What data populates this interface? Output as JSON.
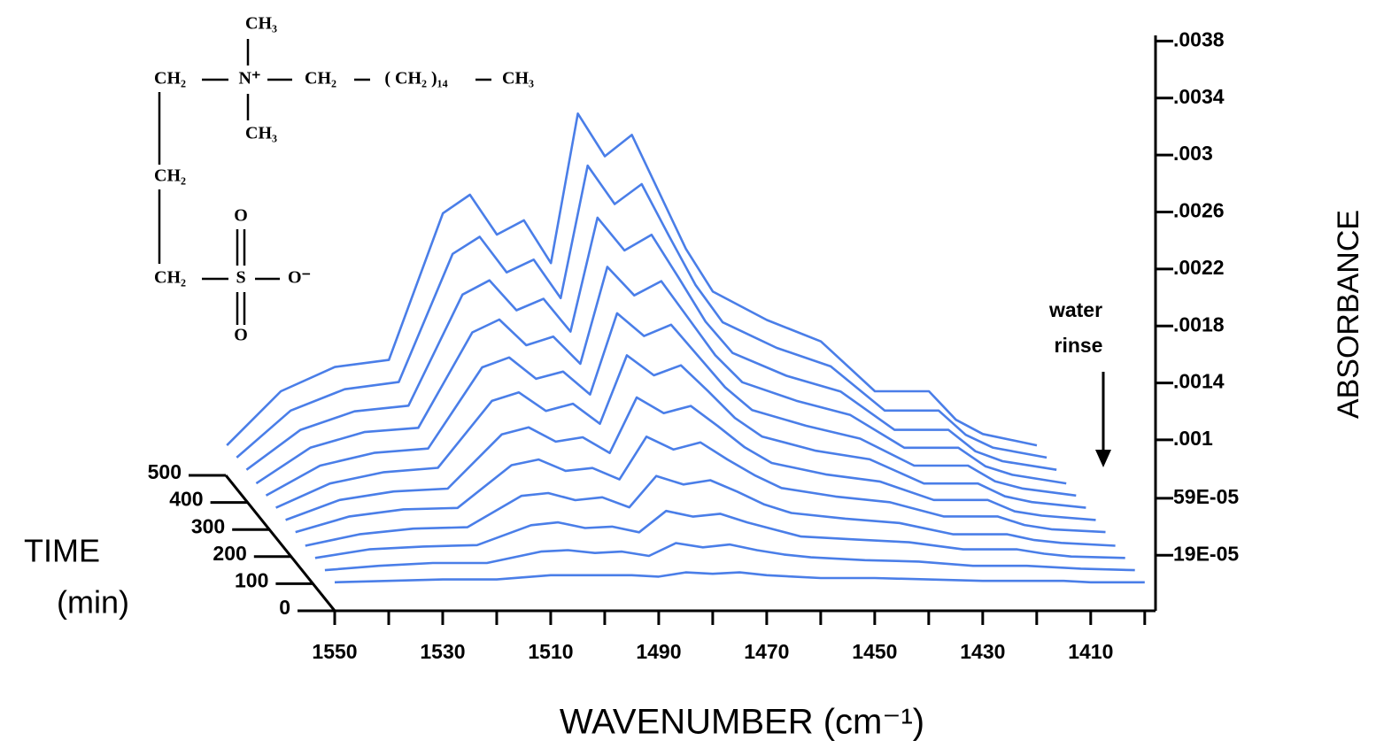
{
  "chart_data": {
    "type": "waterfall",
    "xlabel": "WAVENUMBER (cm⁻¹)",
    "ylabel": "ABSORBANCE",
    "zlabel": "TIME",
    "zunit": "(min)",
    "annotation": [
      "water",
      "rinse"
    ],
    "structure_labels": [
      "CH₃",
      "CH₂",
      "N⁺",
      "CH₂",
      "( CH₂ )₁₄",
      "CH₃",
      "CH₃",
      "CH₂",
      "CH₂",
      "S",
      "O⁻",
      "O",
      "O"
    ],
    "color": "#4a7ee8",
    "xlim": [
      1550,
      1398
    ],
    "xticks": [
      1550,
      1530,
      1510,
      1490,
      1470,
      1450,
      1430,
      1410
    ],
    "xminorticks": [
      1540,
      1520,
      1500,
      1480,
      1460,
      1440,
      1420,
      1400
    ],
    "ylim": [
      -0.0002,
      0.00384
    ],
    "yticks": [
      {
        "value": 0.0038,
        "label": ".0038"
      },
      {
        "value": 0.0034,
        "label": ".0034"
      },
      {
        "value": 0.003,
        "label": ".003"
      },
      {
        "value": 0.0026,
        "label": ".0026"
      },
      {
        "value": 0.0022,
        "label": ".0022"
      },
      {
        "value": 0.0018,
        "label": ".0018"
      },
      {
        "value": 0.0014,
        "label": ".0014"
      },
      {
        "value": 0.001,
        "label": ".001"
      },
      {
        "value": 0.00059,
        "label": "59E-05"
      },
      {
        "value": 0.00019,
        "label": "19E-05"
      }
    ],
    "zlim": [
      0,
      500
    ],
    "zticks": [
      0,
      100,
      200,
      300,
      400,
      500
    ],
    "x": [
      1550,
      1540,
      1530,
      1520,
      1510,
      1505,
      1500,
      1495,
      1490,
      1485,
      1480,
      1475,
      1470,
      1465,
      1460,
      1450,
      1440,
      1430,
      1420,
      1415,
      1410,
      1400
    ],
    "series": [
      {
        "time": 0,
        "values": [
          0,
          1e-05,
          2e-05,
          2e-05,
          5e-05,
          5e-05,
          5e-05,
          5e-05,
          4e-05,
          7e-05,
          6e-05,
          7e-05,
          5e-05,
          4e-05,
          3e-05,
          3e-05,
          2e-05,
          1e-05,
          1e-05,
          1e-05,
          0,
          0
        ]
      },
      {
        "time": 45,
        "values": [
          0,
          3e-05,
          5e-05,
          5e-05,
          0.00013,
          0.00014,
          0.00012,
          0.00013,
          0.0001,
          0.00019,
          0.00016,
          0.00018,
          0.00014,
          0.00011,
          9e-05,
          7e-05,
          6e-05,
          3e-05,
          3e-05,
          2e-05,
          1e-05,
          0
        ]
      },
      {
        "time": 90,
        "values": [
          0,
          6e-05,
          8e-05,
          9e-05,
          0.00023,
          0.00025,
          0.00021,
          0.00022,
          0.00018,
          0.00033,
          0.00029,
          0.00031,
          0.00025,
          0.0002,
          0.00015,
          0.00013,
          0.00011,
          6e-05,
          6e-05,
          3e-05,
          1e-05,
          0
        ]
      },
      {
        "time": 135,
        "values": [
          0,
          8e-05,
          0.00012,
          0.00013,
          0.00035,
          0.00037,
          0.00032,
          0.00034,
          0.00027,
          0.00049,
          0.00043,
          0.00046,
          0.00038,
          0.00029,
          0.00023,
          0.00019,
          0.00016,
          8e-05,
          8e-05,
          4e-05,
          2e-05,
          0
        ]
      },
      {
        "time": 180,
        "values": [
          1e-05,
          0.00012,
          0.00017,
          0.00018,
          0.00048,
          0.00052,
          0.00044,
          0.00046,
          0.00038,
          0.00068,
          0.00059,
          0.00064,
          0.00052,
          0.00041,
          0.00032,
          0.00026,
          0.00022,
          0.00012,
          0.00012,
          6e-05,
          3e-05,
          1e-05
        ]
      },
      {
        "time": 225,
        "values": [
          1e-05,
          0.00015,
          0.00021,
          0.00023,
          0.00061,
          0.00066,
          0.00056,
          0.00059,
          0.00048,
          0.00087,
          0.00076,
          0.00081,
          0.00067,
          0.00052,
          0.00041,
          0.00033,
          0.00028,
          0.00015,
          0.00015,
          7e-05,
          4e-05,
          1e-05
        ]
      },
      {
        "time": 270,
        "values": [
          1e-05,
          0.00018,
          0.00026,
          0.00029,
          0.00076,
          0.00082,
          0.00069,
          0.00074,
          0.0006,
          0.00108,
          0.00094,
          0.00101,
          0.00083,
          0.00064,
          0.00051,
          0.00041,
          0.00035,
          0.00018,
          0.00018,
          9e-05,
          5e-05,
          1e-05
        ]
      },
      {
        "time": 315,
        "values": [
          1e-05,
          0.00022,
          0.00031,
          0.00034,
          0.00091,
          0.00098,
          0.00083,
          0.00088,
          0.00072,
          0.00129,
          0.00113,
          0.00121,
          0.00099,
          0.00077,
          0.00061,
          0.0005,
          0.00041,
          0.00022,
          0.00022,
          0.00011,
          6e-05,
          1e-05
        ]
      },
      {
        "time": 360,
        "values": [
          1e-05,
          0.00026,
          0.00037,
          0.0004,
          0.00107,
          0.00116,
          0.00098,
          0.00104,
          0.00085,
          0.00153,
          0.00133,
          0.00143,
          0.00117,
          0.00091,
          0.00072,
          0.00059,
          0.00049,
          0.00026,
          0.00026,
          0.00013,
          7e-05,
          1e-05
        ]
      },
      {
        "time": 405,
        "values": [
          2e-05,
          0.0003,
          0.00043,
          0.00047,
          0.00125,
          0.00135,
          0.00114,
          0.00122,
          0.00099,
          0.00179,
          0.00156,
          0.00167,
          0.00137,
          0.00106,
          0.00084,
          0.00068,
          0.00057,
          0.0003,
          0.0003,
          0.00015,
          8e-05,
          2e-05
        ]
      },
      {
        "time": 450,
        "values": [
          2e-05,
          0.00035,
          0.0005,
          0.00055,
          0.00145,
          0.00157,
          0.00132,
          0.00141,
          0.00114,
          0.00207,
          0.0018,
          0.00194,
          0.00158,
          0.00123,
          0.00097,
          0.00079,
          0.00066,
          0.00035,
          0.00035,
          0.00018,
          9e-05,
          2e-05
        ]
      },
      {
        "time": 495,
        "values": [
          2e-05,
          0.0004,
          0.00057,
          0.00062,
          0.00165,
          0.00178,
          0.0015,
          0.0016,
          0.0013,
          0.00235,
          0.00205,
          0.0022,
          0.0018,
          0.0014,
          0.0011,
          0.0009,
          0.00075,
          0.0004,
          0.0004,
          0.0002,
          0.0001,
          2e-05
        ]
      }
    ]
  }
}
